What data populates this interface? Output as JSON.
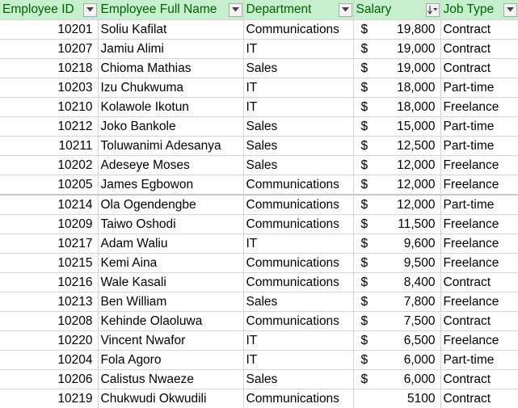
{
  "headers": {
    "id": "Employee ID",
    "name": "Employee Full Name",
    "dept": "Department",
    "salary": "Salary",
    "job": "Job Type"
  },
  "rows": [
    {
      "id": "10201",
      "name": "Soliu Kafilat",
      "dept": "Communications",
      "currency": "$",
      "salary": "19,800",
      "job": "Contract"
    },
    {
      "id": "10207",
      "name": "Jamiu Alimi",
      "dept": "IT",
      "currency": "$",
      "salary": "19,000",
      "job": "Contract"
    },
    {
      "id": "10218",
      "name": "Chioma Mathias",
      "dept": "Sales",
      "currency": "$",
      "salary": "19,000",
      "job": "Contract"
    },
    {
      "id": "10203",
      "name": "Izu Chukwuma",
      "dept": "IT",
      "currency": "$",
      "salary": "18,000",
      "job": "Part-time"
    },
    {
      "id": "10210",
      "name": "Kolawole Ikotun",
      "dept": "IT",
      "currency": "$",
      "salary": "18,000",
      "job": "Freelance"
    },
    {
      "id": "10212",
      "name": "Joko Bankole",
      "dept": "Sales",
      "currency": "$",
      "salary": "15,000",
      "job": "Part-time"
    },
    {
      "id": "10211",
      "name": "Toluwanimi Adesanya",
      "dept": "Sales",
      "currency": "$",
      "salary": "12,500",
      "job": "Part-time"
    },
    {
      "id": "10202",
      "name": "Adeseye Moses",
      "dept": "Sales",
      "currency": "$",
      "salary": "12,000",
      "job": "Freelance"
    },
    {
      "id": "10205",
      "name": "James Egbowon",
      "dept": "Communications",
      "currency": "$",
      "salary": "12,000",
      "job": "Freelance"
    },
    {
      "id": "10214",
      "name": "Ola Ogendengbe",
      "dept": "Communications",
      "currency": "$",
      "salary": "12,000",
      "job": "Part-time"
    },
    {
      "id": "10209",
      "name": "Taiwo Oshodi",
      "dept": "Communications",
      "currency": "$",
      "salary": "11,500",
      "job": "Freelance"
    },
    {
      "id": "10217",
      "name": "Adam Waliu",
      "dept": "IT",
      "currency": "$",
      "salary": "9,600",
      "job": "Freelance"
    },
    {
      "id": "10215",
      "name": "Kemi Aina",
      "dept": "Communications",
      "currency": "$",
      "salary": "9,500",
      "job": "Freelance"
    },
    {
      "id": "10216",
      "name": "Wale Kasali",
      "dept": "Communications",
      "currency": "$",
      "salary": "8,400",
      "job": "Contract"
    },
    {
      "id": "10213",
      "name": "Ben William",
      "dept": "Sales",
      "currency": "$",
      "salary": "7,800",
      "job": "Freelance"
    },
    {
      "id": "10208",
      "name": "Kehinde Olaoluwa",
      "dept": "Communications",
      "currency": "$",
      "salary": "7,500",
      "job": "Contract"
    },
    {
      "id": "10220",
      "name": "Vincent Nwafor",
      "dept": "IT",
      "currency": "$",
      "salary": "6,500",
      "job": "Freelance"
    },
    {
      "id": "10204",
      "name": "Fola Agoro",
      "dept": "IT",
      "currency": "$",
      "salary": "6,000",
      "job": "Part-time"
    },
    {
      "id": "10206",
      "name": "Calistus Nwaeze",
      "dept": "Sales",
      "currency": "$",
      "salary": "6,000",
      "job": "Contract"
    },
    {
      "id": "10219",
      "name": "Chukwudi Okwudili",
      "dept": "Communications",
      "currency": "",
      "salary": "5100",
      "job": "Contract"
    }
  ],
  "icons": {
    "filter": "dropdown-arrow-icon",
    "sort": "sort-descending-filter-icon"
  },
  "colors": {
    "header_bg": "#c6efce",
    "header_text": "#006100",
    "gridline": "#d4d4d4"
  }
}
